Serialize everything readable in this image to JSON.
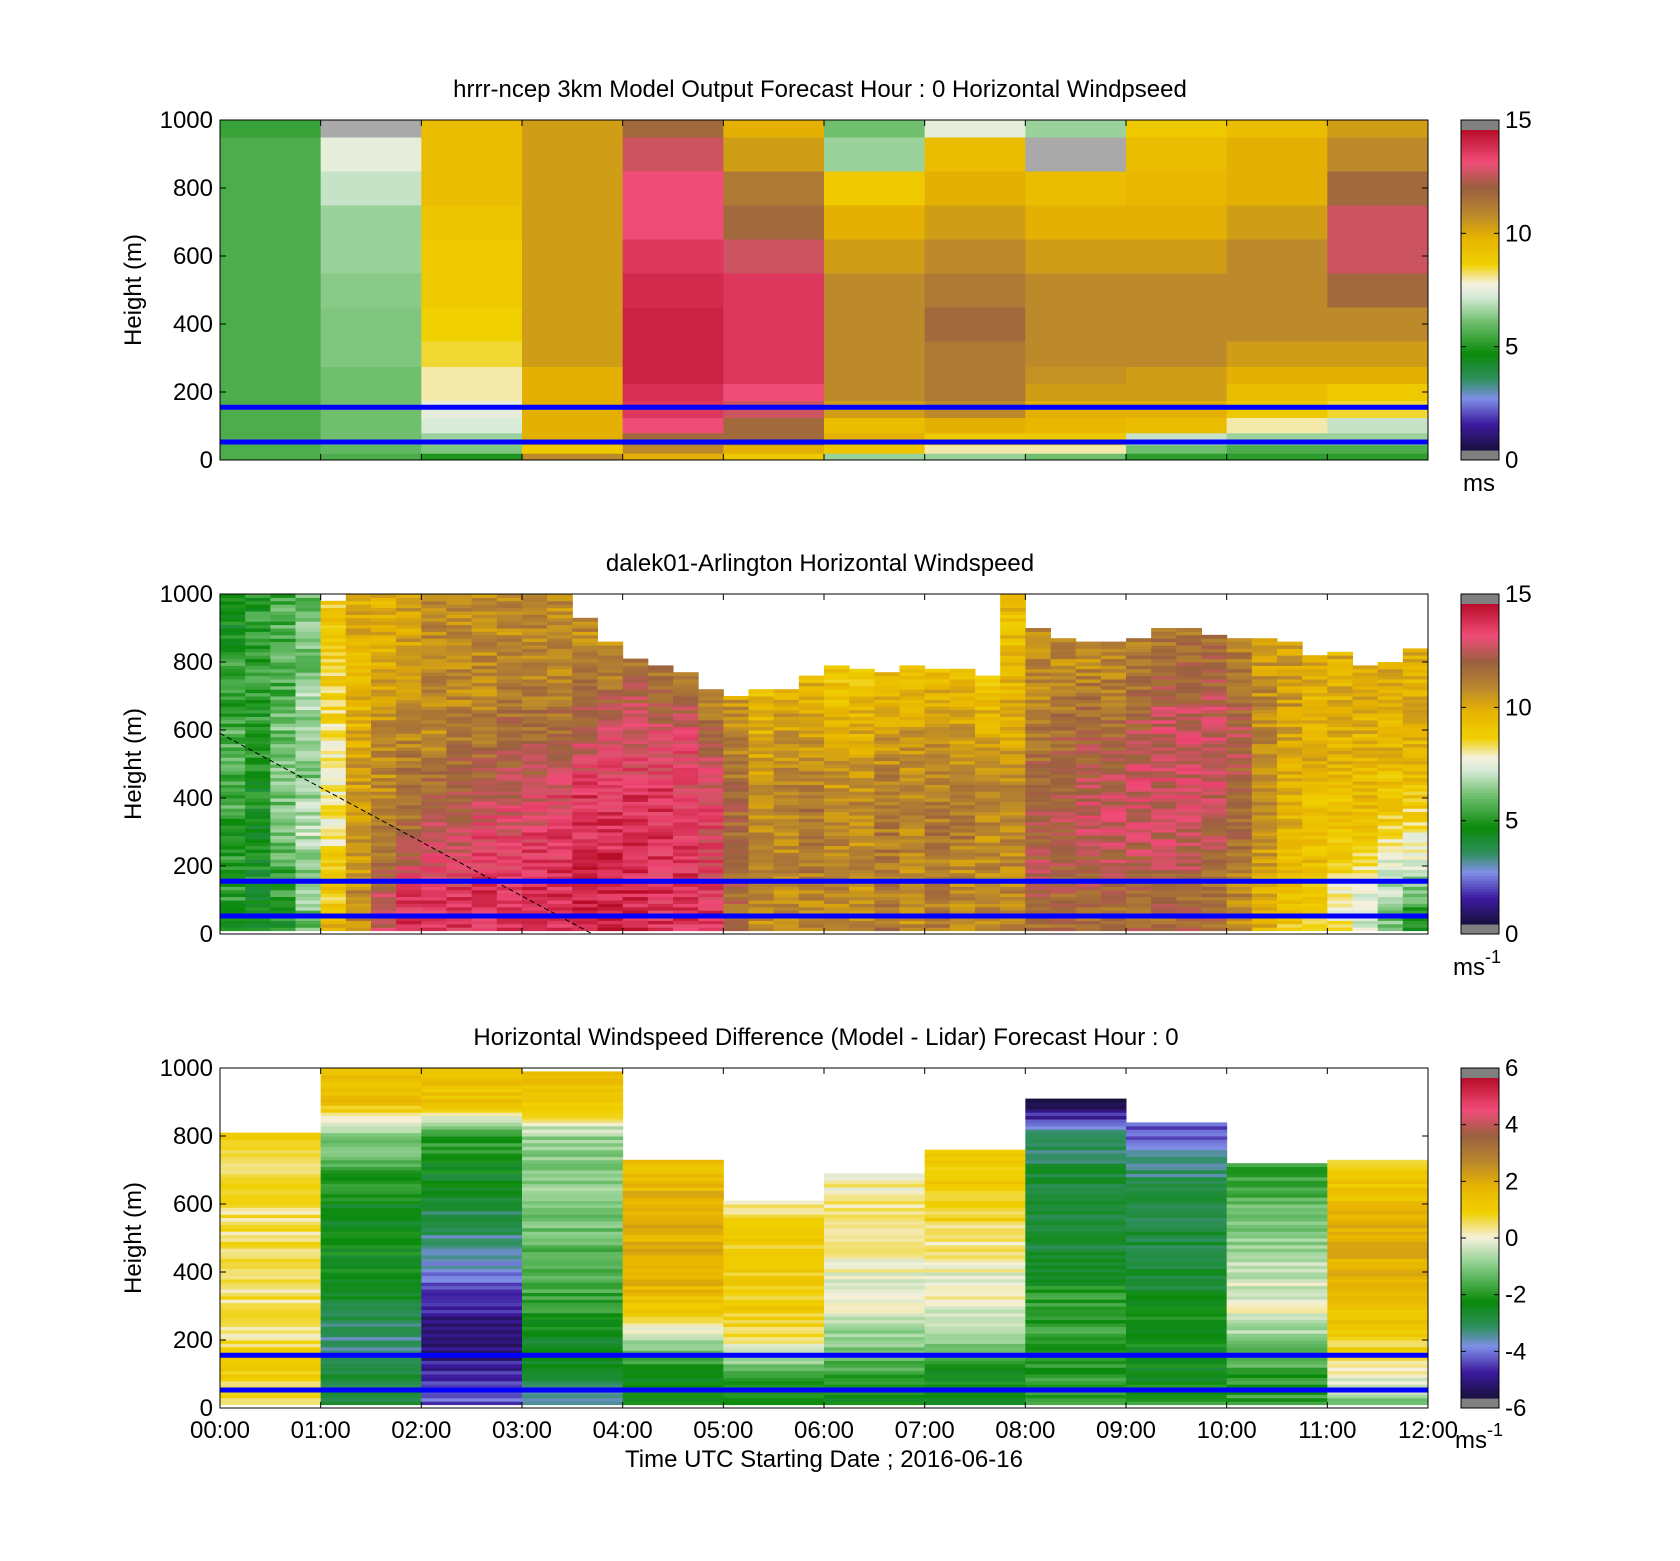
{
  "xlabel": "Time UTC  Starting Date ; 2016-06-16",
  "x_ticks": [
    "00:00",
    "01:00",
    "02:00",
    "03:00",
    "04:00",
    "05:00",
    "06:00",
    "07:00",
    "08:00",
    "09:00",
    "10:00",
    "11:00",
    "12:00"
  ],
  "chart_data": [
    {
      "type": "heatmap",
      "title": "hrrr-ncep 3km Model Output   Forecast Hour : 0 Horizontal Windpseed",
      "ylabel": "Height (m)",
      "xlim": [
        0,
        12
      ],
      "ylim": [
        0,
        1000
      ],
      "y_ticks": [
        "0",
        "200",
        "400",
        "600",
        "800",
        "1000"
      ],
      "colorbar": {
        "ticks": [
          "0",
          "5",
          "10",
          "15"
        ],
        "range": [
          0,
          15
        ],
        "unit": "ms"
      },
      "reference_lines_m": [
        155,
        50
      ],
      "times_h": [
        0,
        1,
        2,
        3,
        4,
        5,
        6,
        7,
        8,
        9,
        10,
        11
      ],
      "heights_m": [
        10,
        30,
        60,
        100,
        150,
        200,
        250,
        300,
        400,
        500,
        600,
        700,
        800,
        900,
        1000
      ],
      "values": [
        [
          5.5,
          5.5,
          4.8,
          11,
          10,
          9,
          6.5,
          6.5,
          6,
          5,
          5,
          5
        ],
        [
          5.5,
          5.8,
          6.2,
          9,
          11,
          10,
          9.2,
          8,
          8,
          6,
          5.5,
          5.5
        ],
        [
          5.5,
          6,
          6.5,
          10,
          12,
          12,
          10,
          9,
          9,
          7,
          6.5,
          6.5
        ],
        [
          5.5,
          6,
          7.2,
          10,
          13.5,
          12,
          9.5,
          10,
          9.8,
          9.5,
          8,
          7
        ],
        [
          5.5,
          6,
          7.5,
          10,
          14,
          13,
          10.5,
          11,
          10,
          10,
          9,
          8.5
        ],
        [
          5.5,
          6,
          8,
          10,
          14.2,
          13.5,
          11,
          11.5,
          10.5,
          10.5,
          9.5,
          9
        ],
        [
          5.5,
          6,
          8,
          10,
          14.5,
          14,
          11,
          11.5,
          10.8,
          10.5,
          10,
          10
        ],
        [
          5.5,
          6.2,
          8.5,
          10.5,
          14.5,
          14,
          11,
          11.5,
          11,
          11,
          10.5,
          10.5
        ],
        [
          5.5,
          6.2,
          8.7,
          10.5,
          14.5,
          14,
          11,
          12,
          11,
          11,
          11,
          11
        ],
        [
          5.5,
          6.3,
          9,
          10.5,
          14.3,
          14,
          11,
          11.5,
          11,
          11,
          11,
          12
        ],
        [
          5.5,
          6.5,
          9,
          10.5,
          14,
          13,
          10.5,
          11,
          10.5,
          10.5,
          11,
          13
        ],
        [
          5.5,
          6.5,
          9.2,
          10.5,
          13.5,
          12,
          10,
          10.5,
          10,
          10,
          10.5,
          13
        ],
        [
          5.5,
          7,
          9.5,
          10.5,
          13.5,
          11.5,
          9,
          10,
          9.5,
          9.8,
          10,
          12
        ],
        [
          5.5,
          7.5,
          9.5,
          10.5,
          13,
          10.5,
          6.5,
          9.5,
          15.5,
          9.5,
          10,
          11
        ],
        [
          5.2,
          15.5,
          9.5,
          10.5,
          12,
          10,
          6,
          7.5,
          6.5,
          9,
          9.5,
          10.5
        ]
      ]
    },
    {
      "type": "heatmap",
      "title": "dalek01-Arlington  Horizontal Windspeed",
      "ylabel": "Height (m)",
      "xlim": [
        0,
        12
      ],
      "ylim": [
        0,
        1000
      ],
      "y_ticks": [
        "0",
        "200",
        "400",
        "600",
        "800",
        "1000"
      ],
      "colorbar": {
        "ticks": [
          "0",
          "5",
          "10",
          "15"
        ],
        "range": [
          0,
          15
        ],
        "unit_base": "ms",
        "unit_exp": "-1"
      },
      "reference_lines_m": [
        155,
        50
      ],
      "dashed_line": {
        "x": [
          0.0,
          3.7
        ],
        "y": [
          590,
          0
        ]
      },
      "column_times_h": [
        0.25,
        0.5,
        0.75,
        1.0,
        1.25,
        1.5,
        1.75,
        2.0,
        2.25,
        2.5,
        2.75,
        3.0,
        3.25,
        3.5,
        3.75,
        4.0,
        4.25,
        4.5,
        4.75,
        5.0,
        5.25,
        5.5,
        5.75,
        6.0,
        6.25,
        6.5,
        6.75,
        7.0,
        7.25,
        7.5,
        7.75,
        8.0,
        8.25,
        8.5,
        8.75,
        9.0,
        9.25,
        9.5,
        9.75,
        10.0,
        10.25,
        10.5,
        10.75,
        11.0,
        11.25,
        11.5,
        11.75,
        12.0
      ],
      "top_of_data_m": [
        1000,
        1000,
        1000,
        1000,
        980,
        1000,
        1000,
        1000,
        1000,
        1000,
        1000,
        1000,
        1000,
        1000,
        930,
        860,
        810,
        790,
        770,
        720,
        700,
        720,
        720,
        760,
        790,
        780,
        770,
        790,
        780,
        780,
        760,
        1000,
        900,
        870,
        860,
        860,
        870,
        900,
        900,
        880,
        870,
        870,
        860,
        820,
        830,
        790,
        800,
        840
      ],
      "profiles": {
        "heights_m": [
          25,
          100,
          200,
          300,
          400,
          500,
          600,
          700,
          800,
          900
        ],
        "values_by_column": [
          [
            4.5,
            5,
            5,
            5,
            5.5,
            5.5,
            5.5,
            5,
            5,
            4.5
          ],
          [
            4.5,
            4.5,
            4.5,
            4.5,
            4.5,
            4.8,
            5,
            5,
            5,
            5
          ],
          [
            4.5,
            5,
            5.5,
            6,
            6,
            6,
            6,
            5.5,
            5.5,
            5.5
          ],
          [
            6,
            6.2,
            6,
            7,
            6.5,
            6,
            6.5,
            6.5,
            6,
            6
          ],
          [
            10,
            9,
            9,
            8,
            8,
            8,
            8.5,
            8.5,
            9,
            9
          ],
          [
            11,
            11,
            10.5,
            10.5,
            10.5,
            10.5,
            10,
            9.8,
            9.5,
            10
          ],
          [
            13,
            13,
            12,
            11.5,
            11,
            11,
            11,
            10.5,
            10,
            10
          ],
          [
            14,
            14,
            13,
            12,
            11.5,
            11.5,
            11,
            10.5,
            10.5,
            10.5
          ],
          [
            14,
            14,
            13.5,
            13,
            12,
            11.5,
            11,
            11,
            11,
            11
          ],
          [
            14,
            14,
            13.5,
            13,
            12.5,
            12,
            11.5,
            11,
            11,
            11
          ],
          [
            14,
            14,
            14,
            13.5,
            13,
            12,
            11.5,
            11,
            11,
            11
          ],
          [
            14,
            14,
            14,
            13.5,
            13,
            12.5,
            12,
            11.5,
            11,
            11
          ],
          [
            14,
            14,
            14,
            13.5,
            13,
            12.5,
            12,
            11.5,
            11,
            11
          ],
          [
            14,
            14,
            14,
            14,
            13.5,
            13,
            12,
            11.5,
            11,
            11
          ],
          [
            14.5,
            14.5,
            14.5,
            14,
            14,
            13.5,
            12.5,
            12,
            11,
            11
          ],
          [
            14.5,
            14.5,
            14.5,
            14,
            14,
            13.5,
            13,
            12,
            11,
            11
          ],
          [
            14.5,
            14.5,
            14,
            14,
            14,
            13.5,
            13,
            12.5,
            11.5,
            11
          ],
          [
            14,
            14,
            14,
            14,
            14,
            13.5,
            13,
            12,
            11.5,
            11
          ],
          [
            14,
            14,
            14,
            14,
            13.5,
            13.5,
            13,
            12,
            11.5,
            11
          ],
          [
            14,
            14,
            13.5,
            13.5,
            13.5,
            13,
            12,
            11,
            10.5,
            10.5
          ],
          [
            12,
            12,
            12,
            12,
            12,
            11.5,
            11,
            10.5,
            10,
            10
          ],
          [
            11,
            11,
            11,
            11,
            11,
            10.5,
            10,
            9.5,
            9,
            9
          ],
          [
            11,
            11,
            11,
            11,
            11,
            11,
            10.5,
            10,
            9.5,
            9
          ],
          [
            11,
            11,
            11.5,
            11.5,
            11.5,
            11,
            10.5,
            10,
            9.5,
            9
          ],
          [
            11,
            11,
            11,
            11,
            11,
            10.5,
            10,
            9.5,
            9,
            9
          ],
          [
            11,
            11,
            11,
            11,
            11,
            10.5,
            10,
            9.5,
            9,
            8.5
          ],
          [
            11.5,
            11.5,
            11.5,
            11.5,
            11.5,
            11,
            10.5,
            10,
            9.5,
            9
          ],
          [
            11,
            11,
            11,
            11,
            11,
            11,
            10.5,
            10,
            9.5,
            9
          ],
          [
            11.5,
            11.5,
            11.5,
            11.5,
            11.5,
            11,
            10.5,
            10,
            9.5,
            9
          ],
          [
            11,
            11,
            11,
            11.5,
            11.5,
            11,
            10.5,
            10,
            9.5,
            9
          ],
          [
            11,
            11,
            11,
            11,
            11,
            10.5,
            10,
            9.5,
            9,
            9
          ],
          [
            11,
            11,
            11,
            11,
            11,
            10.5,
            10,
            10,
            9.5,
            9.5
          ],
          [
            12,
            12,
            12.5,
            12.5,
            12.5,
            12,
            11.5,
            11,
            11,
            11
          ],
          [
            12,
            12,
            12.5,
            12.5,
            12.5,
            12,
            12,
            11.5,
            11,
            11
          ],
          [
            12,
            12,
            12.5,
            13,
            13,
            12.5,
            12,
            11.5,
            11,
            11
          ],
          [
            12,
            12,
            12.5,
            13,
            13,
            12.5,
            12,
            11.5,
            11,
            11
          ],
          [
            12,
            12,
            12.5,
            13,
            13,
            13,
            12.5,
            12,
            11.5,
            11
          ],
          [
            12,
            12,
            12.5,
            13,
            13,
            13,
            13,
            12.5,
            12,
            11.5
          ],
          [
            12,
            12,
            12.5,
            13,
            13,
            13,
            13,
            12.5,
            12,
            11.5
          ],
          [
            12,
            12,
            12,
            12.5,
            13,
            13,
            13,
            12.5,
            12,
            11.5
          ],
          [
            11,
            11,
            11.5,
            12,
            12,
            12.5,
            12.5,
            12,
            11.5,
            11
          ],
          [
            10,
            10,
            10.5,
            11,
            11,
            11,
            11,
            11,
            10.5,
            10.5
          ],
          [
            9,
            9,
            9.5,
            10,
            10,
            10,
            10.5,
            10.5,
            10.5,
            10.5
          ],
          [
            9,
            9,
            9.5,
            9.5,
            9.5,
            10,
            10,
            10,
            10,
            10
          ],
          [
            8,
            8,
            9,
            9.5,
            9.5,
            10,
            10,
            10,
            10,
            10
          ],
          [
            7,
            7.5,
            8.5,
            9,
            9.5,
            9.5,
            10,
            10,
            10,
            10
          ],
          [
            6,
            6.5,
            7.5,
            8.5,
            9,
            9.5,
            10,
            10,
            10,
            10
          ],
          [
            5,
            5.5,
            7,
            8,
            9,
            9.5,
            10,
            10,
            10,
            10
          ]
        ]
      }
    },
    {
      "type": "heatmap",
      "title": "Horizontal Windspeed Difference (Model - Lidar) Forecast Hour : 0",
      "ylabel": "Height (m)",
      "xlim": [
        0,
        12
      ],
      "ylim": [
        0,
        1000
      ],
      "y_ticks": [
        "0",
        "200",
        "400",
        "600",
        "800",
        "1000"
      ],
      "colorbar": {
        "ticks": [
          "-6",
          "-4",
          "-2",
          "0",
          "2",
          "4",
          "6"
        ],
        "range": [
          -6,
          6
        ],
        "unit_base": "ms",
        "unit_exp": "-1"
      },
      "reference_lines_m": [
        155,
        50
      ],
      "times_h": [
        0,
        1,
        2,
        3,
        4,
        5,
        6,
        7,
        8,
        9,
        10,
        11
      ],
      "top_of_data_m": [
        810,
        1000,
        1000,
        990,
        730,
        610,
        690,
        760,
        910,
        840,
        720,
        730
      ],
      "heights_m": [
        25,
        100,
        200,
        300,
        400,
        500,
        600,
        700,
        800,
        900
      ],
      "values": [
        [
          0.5,
          1,
          0.5,
          0.5,
          0.5,
          0.5,
          0.5,
          0.5,
          1,
          0.5
        ],
        [
          -3,
          -3,
          -3.5,
          -3,
          -2.5,
          -2.5,
          -2.5,
          -2,
          -1,
          1.5
        ],
        [
          -4.5,
          -5,
          -5.5,
          -5,
          -4,
          -3.5,
          -3,
          -2.5,
          -2,
          1.5
        ],
        [
          -3.5,
          -3,
          -2.5,
          -2,
          -1.5,
          -1.5,
          -1,
          -1,
          -1,
          1.5
        ],
        [
          -2.5,
          -2.5,
          -0.5,
          1.5,
          2,
          2,
          2,
          1.5,
          1.5,
          1.5
        ],
        [
          -2.5,
          -2,
          0.5,
          1,
          1,
          1,
          0.5,
          0.5,
          0.5,
          0.5
        ],
        [
          -2.5,
          -2,
          -1,
          0,
          0,
          0.5,
          0.5,
          0,
          0,
          0
        ],
        [
          -2.5,
          -2.5,
          -1,
          0,
          0,
          0.5,
          1,
          1,
          1,
          1
        ],
        [
          -2,
          -2,
          -2,
          -2,
          -2.5,
          -3,
          -3,
          -3,
          -3.5,
          -6
        ],
        [
          -2,
          -2.5,
          -2.5,
          -2.5,
          -3,
          -3,
          -3,
          -3.5,
          -4.5,
          -4.5
        ],
        [
          -2,
          -2,
          -1,
          0,
          -0.5,
          -1,
          -1.5,
          -2,
          -2.5,
          -2.5
        ],
        [
          -1,
          0,
          1,
          1.5,
          2,
          2,
          1.5,
          1,
          0.5,
          0.5
        ]
      ]
    }
  ]
}
